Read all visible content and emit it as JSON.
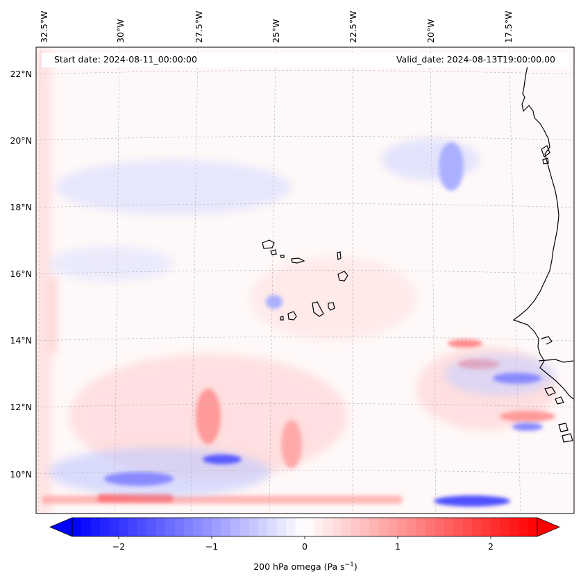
{
  "map": {
    "start_date": "Start date: 2024-08-11_00:00:00",
    "valid_date": "Valid_date: 2024-08-13T19:00:00.00",
    "lon_labels": [
      "32.5°W",
      "30°W",
      "27.5°W",
      "25°W",
      "22.5°W",
      "20°W",
      "17.5°W"
    ],
    "lat_labels": [
      "22°N",
      "20°N",
      "18°N",
      "16°N",
      "14°N",
      "12°N",
      "10°N"
    ],
    "field": "200 hPa omega",
    "colors": {
      "negative": "#0000ff",
      "zero": "#ffffff",
      "positive": "#ff0000",
      "coastline": "#000000",
      "gridline": "#b0b0b0"
    }
  },
  "colorbar": {
    "label": "200 hPa omega (Pa s",
    "label_exponent": "−1",
    "label_close": ")",
    "ticks": [
      "−2",
      "−1",
      "0",
      "1",
      "2"
    ],
    "min": -2.5,
    "max": 2.5,
    "extend": "both"
  }
}
